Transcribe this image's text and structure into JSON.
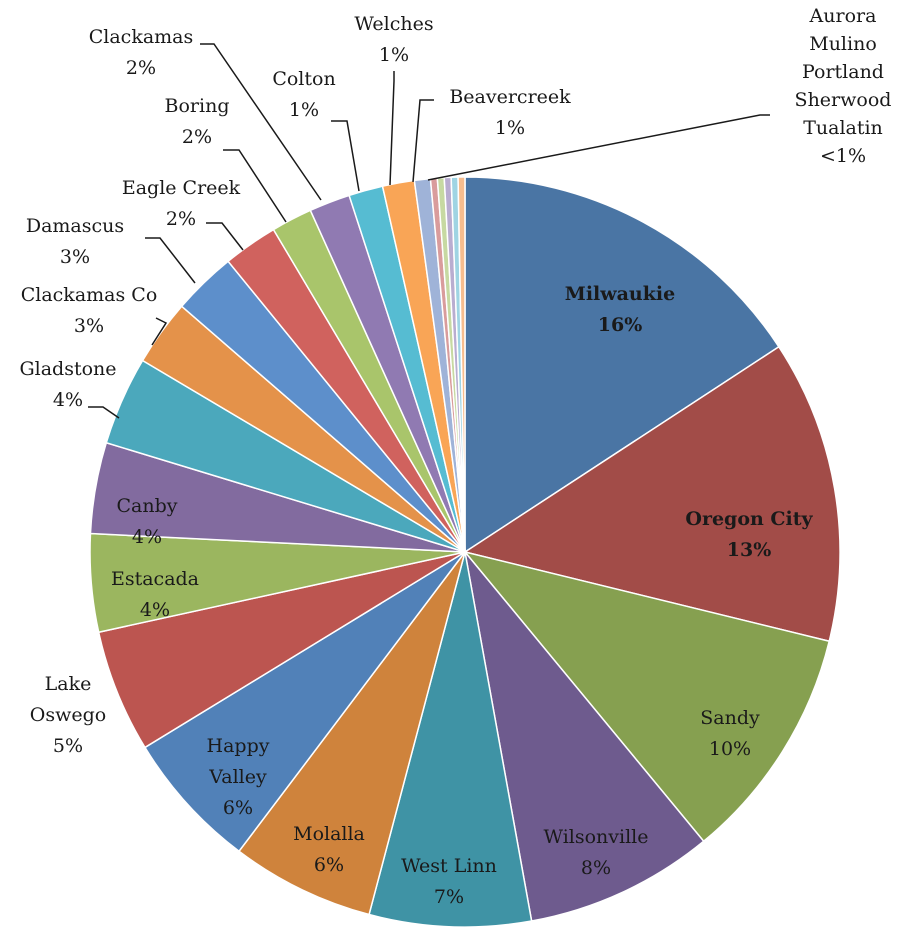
{
  "chart_data": {
    "type": "pie",
    "title": "",
    "start_angle_deg": 0,
    "direction": "clockwise",
    "slices": [
      {
        "label": "Milwaukie",
        "percent_label": "16%",
        "value": 16.1,
        "color": "#4a75a4",
        "bold": true
      },
      {
        "label": "Oregon City",
        "percent_label": "13%",
        "value": 13.3,
        "color": "#a24c48",
        "bold": true
      },
      {
        "label": "Sandy",
        "percent_label": "10%",
        "value": 10.4,
        "color": "#86a050"
      },
      {
        "label": "Wilsonville",
        "percent_label": "8%",
        "value": 8.3,
        "color": "#6e5b8e"
      },
      {
        "label": "West Linn",
        "percent_label": "7%",
        "value": 7.1,
        "color": "#3f93a5"
      },
      {
        "label": "Molalla",
        "percent_label": "6%",
        "value": 6.3,
        "color": "#cf833c"
      },
      {
        "label": "Happy Valley",
        "percent_label": "6%",
        "value": 6.1,
        "color": "#5181b8"
      },
      {
        "label": "Lake Oswego",
        "percent_label": "5%",
        "value": 5.4,
        "color": "#bc5550"
      },
      {
        "label": "Estacada",
        "percent_label": "4%",
        "value": 4.3,
        "color": "#9bb65f"
      },
      {
        "label": "Canby",
        "percent_label": "4%",
        "value": 4.0,
        "color": "#826b9f"
      },
      {
        "label": "Gladstone",
        "percent_label": "4%",
        "value": 3.9,
        "color": "#4ba8bc"
      },
      {
        "label": "Clackamas Co",
        "percent_label": "3%",
        "value": 2.9,
        "color": "#e4924a"
      },
      {
        "label": "Damascus",
        "percent_label": "3%",
        "value": 2.8,
        "color": "#5d8fcb"
      },
      {
        "label": "Eagle Creek",
        "percent_label": "2%",
        "value": 2.4,
        "color": "#d0625e"
      },
      {
        "label": "Boring",
        "percent_label": "2%",
        "value": 1.8,
        "color": "#a9c56b"
      },
      {
        "label": "Clackamas",
        "percent_label": "2%",
        "value": 1.8,
        "color": "#907ab2"
      },
      {
        "label": "Colton",
        "percent_label": "1%",
        "value": 1.5,
        "color": "#56bcd2"
      },
      {
        "label": "Welches",
        "percent_label": "1%",
        "value": 1.4,
        "color": "#f9a556"
      },
      {
        "label": "Beavercreek",
        "percent_label": "1%",
        "value": 0.7,
        "color": "#9fb3d8"
      },
      {
        "label": "Aurora",
        "percent_label": "<1%",
        "value": 0.3,
        "color": "#d99c9c"
      },
      {
        "label": "Mulino",
        "percent_label": "<1%",
        "value": 0.3,
        "color": "#c7d9a2"
      },
      {
        "label": "Portland",
        "percent_label": "<1%",
        "value": 0.3,
        "color": "#b9add0"
      },
      {
        "label": "Sherwood",
        "percent_label": "<1%",
        "value": 0.3,
        "color": "#9fd4e3"
      },
      {
        "label": "Tualatin",
        "percent_label": "<1%",
        "value": 0.3,
        "color": "#f7bd8e"
      }
    ],
    "grouped_label": {
      "lines": [
        "Aurora",
        "Mulino",
        "Portland",
        "Sherwood",
        "Tualatin",
        "<1%"
      ]
    }
  }
}
